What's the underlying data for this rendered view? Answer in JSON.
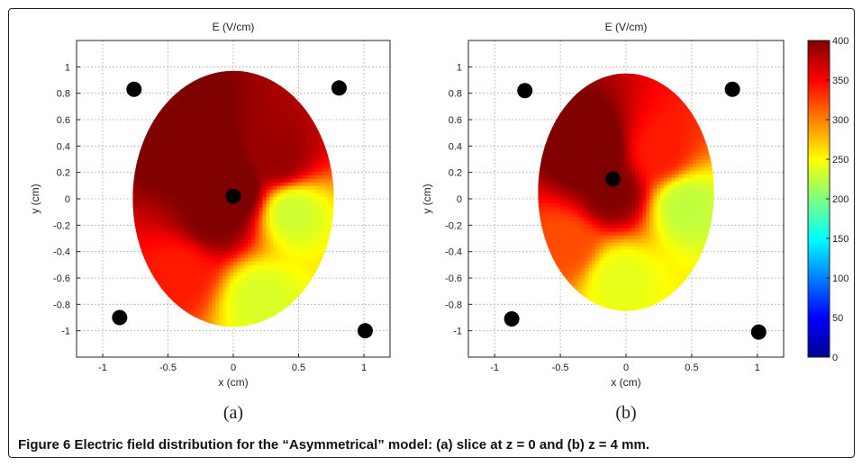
{
  "figure": {
    "caption_label": "Figure 6",
    "caption_text": "Electric field distribution for the “Asymmetrical” model: (a) slice at z = 0 and (b) z = 4 mm."
  },
  "colors": {
    "axis": "#222222",
    "grid": "#9a9a9a",
    "electrode": "#000000",
    "colormap": [
      "#00008f",
      "#0000ff",
      "#0080ff",
      "#00ffff",
      "#80ff80",
      "#ffff00",
      "#ff8000",
      "#ff0000",
      "#800000"
    ]
  },
  "chart_data": [
    {
      "type": "heatmap",
      "panel_label": "(a)",
      "title": "E (V/cm)",
      "xlabel": "x (cm)",
      "ylabel": "y (cm)",
      "xlim": [
        -1.2,
        1.2
      ],
      "ylim": [
        -1.2,
        1.2
      ],
      "xticks": [
        -1,
        -0.5,
        0,
        0.5,
        1
      ],
      "yticks": [
        -1,
        -0.8,
        -0.6,
        -0.4,
        -0.2,
        0,
        0.2,
        0.4,
        0.6,
        0.8,
        1
      ],
      "grid": true,
      "domain_ellipse": {
        "cx": 0,
        "cy": 0,
        "rx": 0.77,
        "ry": 0.97
      },
      "electrodes": [
        {
          "x": -0.76,
          "y": 0.83
        },
        {
          "x": 0.81,
          "y": 0.84
        },
        {
          "x": -0.87,
          "y": -0.9
        },
        {
          "x": 1.01,
          "y": -1.0
        },
        {
          "x": 0.0,
          "y": 0.02
        }
      ],
      "field_hotspots": [
        {
          "x": 0.0,
          "y": 0.05,
          "value": 420
        },
        {
          "x": -0.35,
          "y": 0.45,
          "value": 410
        },
        {
          "x": 0.35,
          "y": 0.3,
          "value": 390
        },
        {
          "x": -0.15,
          "y": -0.15,
          "value": 400
        },
        {
          "x": 0.45,
          "y": -0.1,
          "value": 230
        },
        {
          "x": 0.2,
          "y": -0.75,
          "value": 235
        },
        {
          "x": -0.4,
          "y": -0.55,
          "value": 340
        }
      ]
    },
    {
      "type": "heatmap",
      "panel_label": "(b)",
      "title": "E (V/cm)",
      "xlabel": "x (cm)",
      "ylabel": "y (cm)",
      "xlim": [
        -1.2,
        1.2
      ],
      "ylim": [
        -1.2,
        1.2
      ],
      "xticks": [
        -1,
        -0.5,
        0,
        0.5,
        1
      ],
      "yticks": [
        -1,
        -0.8,
        -0.6,
        -0.4,
        -0.2,
        0,
        0.2,
        0.4,
        0.6,
        0.8,
        1
      ],
      "grid": true,
      "domain_ellipse": {
        "cx": 0,
        "cy": 0.05,
        "rx": 0.67,
        "ry": 0.9
      },
      "electrodes": [
        {
          "x": -0.77,
          "y": 0.82
        },
        {
          "x": 0.81,
          "y": 0.83
        },
        {
          "x": -0.87,
          "y": -0.91
        },
        {
          "x": 1.01,
          "y": -1.01
        },
        {
          "x": -0.1,
          "y": 0.15
        }
      ],
      "field_hotspots": [
        {
          "x": -0.25,
          "y": 0.35,
          "value": 420
        },
        {
          "x": -0.1,
          "y": 0.05,
          "value": 400
        },
        {
          "x": 0.25,
          "y": 0.35,
          "value": 340
        },
        {
          "x": 0.45,
          "y": -0.05,
          "value": 225
        },
        {
          "x": -0.05,
          "y": -0.6,
          "value": 240
        },
        {
          "x": -0.45,
          "y": -0.35,
          "value": 320
        }
      ]
    },
    {
      "type": "colorbar",
      "min": 0,
      "max": 400,
      "ticks": [
        0,
        50,
        100,
        150,
        200,
        250,
        300,
        350,
        400
      ]
    }
  ]
}
